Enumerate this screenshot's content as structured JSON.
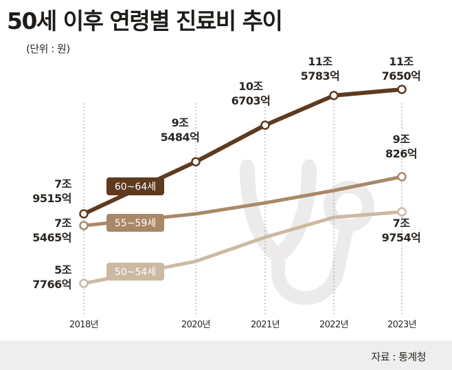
{
  "title": "50세 이후 연령별 진료비 추이",
  "unit_note": "(단위 : 원)",
  "source": "자료 : 통계청",
  "colors": {
    "60~64세": "#5e3a1f",
    "55~59세": "#a98868",
    "50~54세": "#cbb9a1",
    "icon": "#ecebea",
    "footer": "#eeeeee"
  },
  "background_icon": "stethoscope-icon",
  "chart_data": {
    "type": "line",
    "title": "50세 이후 연령별 진료비 추이",
    "unit": "(단위 : 원)",
    "x": [
      "2018년",
      "2020년",
      "2021년",
      "2022년",
      "2023년"
    ],
    "grid": "vertical dashed at each year",
    "series": [
      {
        "name": "60~64세",
        "values": [
          79515,
          95484,
          106703,
          115783,
          117650
        ],
        "unit": "억 원",
        "labels": {
          "0": [
            "7조",
            "9515억"
          ],
          "1": [
            "9조",
            "5484억"
          ],
          "2": [
            "10조",
            "6703억"
          ],
          "3": [
            "11조",
            "5783억"
          ],
          "4": [
            "11조",
            "7650억"
          ]
        }
      },
      {
        "name": "55~59세",
        "values": [
          75465,
          null,
          null,
          null,
          90826
        ],
        "unit": "억 원",
        "labels": {
          "0": [
            "7조",
            "5465억"
          ],
          "4": [
            "9조",
            "826억"
          ]
        }
      },
      {
        "name": "50~54세",
        "values": [
          57766,
          null,
          null,
          null,
          79754
        ],
        "unit": "억 원",
        "labels": {
          "0": [
            "5조",
            "7766억"
          ],
          "4": [
            "7조",
            "9754억"
          ]
        }
      }
    ]
  }
}
